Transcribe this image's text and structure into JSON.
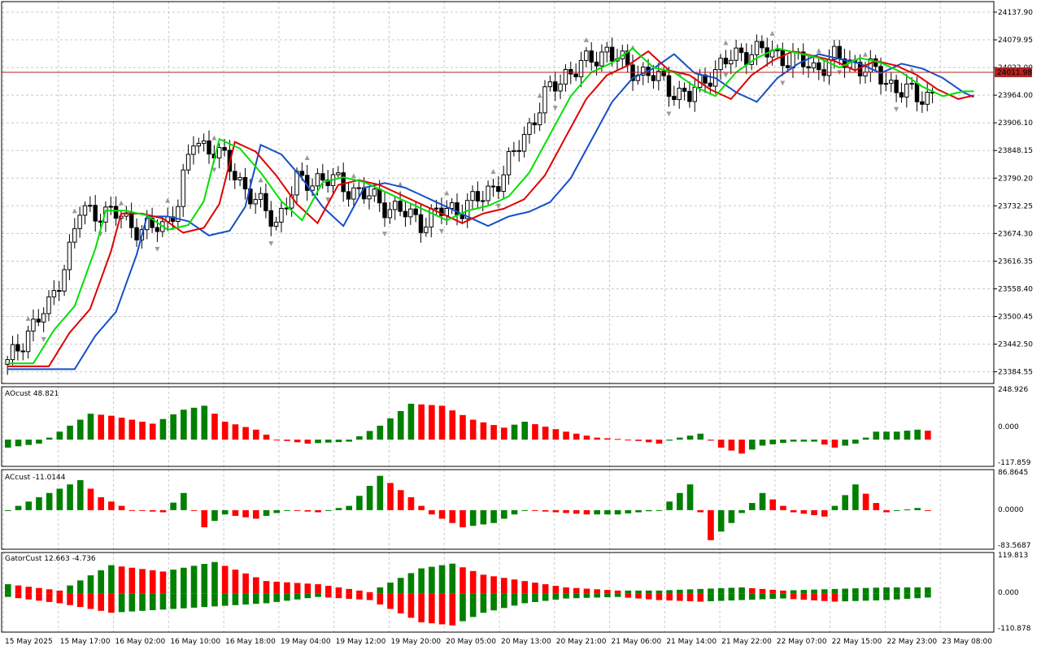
{
  "colors": {
    "up": "#008000",
    "down": "#ff0000",
    "alligator_jaw": "#1550c8",
    "alligator_teeth": "#e00000",
    "alligator_lips": "#00e000",
    "bid_line": "#b22222",
    "bid_tag": "#b22222",
    "grid": "#c8c8c8",
    "fractal": "#9a9a9a",
    "candle": "#000000"
  },
  "price_scale": {
    "labels": [
      "24137.90",
      "24079.95",
      "24022.00",
      "23964.00",
      "23906.10",
      "23848.15",
      "23790.20",
      "23732.25",
      "23674.30",
      "23616.35",
      "23558.40",
      "23500.45",
      "23442.50",
      "23384.55"
    ],
    "current_price": "24011.98"
  },
  "time_axis": {
    "labels": [
      "15 May 2025",
      "15 May 17:00",
      "16 May 02:00",
      "16 May 10:00",
      "16 May 18:00",
      "19 May 04:00",
      "19 May 12:00",
      "19 May 20:00",
      "20 May 05:00",
      "20 May 13:00",
      "20 May 21:00",
      "21 May 06:00",
      "21 May 14:00",
      "21 May 22:00",
      "22 May 07:00",
      "22 May 15:00",
      "22 May 23:00",
      "23 May 08:00"
    ]
  },
  "panels": {
    "ao": {
      "label": "AOcust 48.821",
      "scale_labels": [
        "248.926",
        "0.000",
        "-117.859"
      ]
    },
    "ac": {
      "label": "ACcust -11.0144",
      "scale_labels": [
        "86.8645",
        "0.0000",
        "-83.5687"
      ]
    },
    "gator": {
      "label": "GatorCust 12.663 -4.736",
      "scale_labels": [
        "119.813",
        "0.000",
        "-110.878"
      ]
    }
  },
  "chart_data": [
    {
      "type": "candlestick",
      "ylim": [
        23360,
        24160
      ],
      "bar_count": 180,
      "current_price": 24011.98,
      "close_path": [
        [
          0,
          23400
        ],
        [
          4,
          23470
        ],
        [
          8,
          23520
        ],
        [
          12,
          23640
        ],
        [
          14,
          23720
        ],
        [
          18,
          23720
        ],
        [
          22,
          23710
        ],
        [
          26,
          23680
        ],
        [
          30,
          23690
        ],
        [
          33,
          23740
        ],
        [
          36,
          23870
        ],
        [
          40,
          23850
        ],
        [
          44,
          23800
        ],
        [
          48,
          23740
        ],
        [
          52,
          23700
        ],
        [
          56,
          23780
        ],
        [
          60,
          23790
        ],
        [
          64,
          23780
        ],
        [
          68,
          23760
        ],
        [
          72,
          23740
        ],
        [
          76,
          23720
        ],
        [
          80,
          23700
        ],
        [
          84,
          23720
        ],
        [
          88,
          23730
        ],
        [
          92,
          23750
        ],
        [
          96,
          23800
        ],
        [
          100,
          23880
        ],
        [
          104,
          23960
        ],
        [
          108,
          24010
        ],
        [
          112,
          24030
        ],
        [
          116,
          24060
        ],
        [
          120,
          24020
        ],
        [
          124,
          24010
        ],
        [
          128,
          23980
        ],
        [
          132,
          23960
        ],
        [
          136,
          24010
        ],
        [
          140,
          24040
        ],
        [
          144,
          24060
        ],
        [
          148,
          24050
        ],
        [
          152,
          24040
        ],
        [
          156,
          24020
        ],
        [
          160,
          24040
        ],
        [
          164,
          24030
        ],
        [
          168,
          24010
        ],
        [
          172,
          23980
        ],
        [
          176,
          23960
        ],
        [
          180,
          23970
        ]
      ],
      "alligator": {
        "jaw_start": 23545,
        "jaw_end": 24012,
        "teeth_start": 23500,
        "teeth_end": 24020,
        "lips_start": 23490,
        "lips_end": 24025
      }
    },
    {
      "type": "bar",
      "name": "AOcust",
      "value": 48.821,
      "ylim": [
        -117.859,
        248.926
      ],
      "wave": [
        [
          0,
          -40
        ],
        [
          6,
          -20
        ],
        [
          10,
          40
        ],
        [
          16,
          130
        ],
        [
          20,
          120
        ],
        [
          28,
          80
        ],
        [
          34,
          150
        ],
        [
          38,
          170
        ],
        [
          42,
          90
        ],
        [
          48,
          50
        ],
        [
          52,
          0
        ],
        [
          58,
          -20
        ],
        [
          66,
          -10
        ],
        [
          72,
          70
        ],
        [
          78,
          180
        ],
        [
          84,
          170
        ],
        [
          90,
          100
        ],
        [
          96,
          60
        ],
        [
          100,
          90
        ],
        [
          108,
          40
        ],
        [
          114,
          10
        ],
        [
          120,
          0
        ],
        [
          126,
          -20
        ],
        [
          130,
          10
        ],
        [
          134,
          30
        ],
        [
          138,
          -40
        ],
        [
          142,
          -70
        ],
        [
          146,
          -30
        ],
        [
          152,
          -10
        ],
        [
          156,
          -10
        ],
        [
          160,
          -40
        ],
        [
          164,
          -20
        ],
        [
          168,
          40
        ],
        [
          172,
          40
        ],
        [
          176,
          50
        ],
        [
          180,
          40
        ]
      ]
    },
    {
      "type": "bar",
      "name": "ACcust",
      "value": -11.0144,
      "ylim": [
        -83.5687,
        86.8645
      ],
      "wave": [
        [
          0,
          0
        ],
        [
          8,
          40
        ],
        [
          14,
          70
        ],
        [
          18,
          30
        ],
        [
          24,
          0
        ],
        [
          30,
          -5
        ],
        [
          34,
          40
        ],
        [
          38,
          -40
        ],
        [
          42,
          -10
        ],
        [
          48,
          -20
        ],
        [
          54,
          0
        ],
        [
          60,
          -5
        ],
        [
          66,
          10
        ],
        [
          72,
          80
        ],
        [
          78,
          30
        ],
        [
          82,
          -10
        ],
        [
          88,
          -40
        ],
        [
          94,
          -30
        ],
        [
          100,
          0
        ],
        [
          106,
          -5
        ],
        [
          112,
          -10
        ],
        [
          118,
          -10
        ],
        [
          126,
          0
        ],
        [
          132,
          60
        ],
        [
          136,
          -70
        ],
        [
          140,
          -30
        ],
        [
          146,
          40
        ],
        [
          152,
          -5
        ],
        [
          158,
          -15
        ],
        [
          164,
          60
        ],
        [
          170,
          -5
        ],
        [
          176,
          5
        ],
        [
          180,
          -5
        ]
      ]
    },
    {
      "type": "bar",
      "name": "GatorCust",
      "values": [
        12.663,
        -4.736
      ],
      "ylim": [
        -110.878,
        119.813
      ],
      "upper_wave": [
        [
          0,
          30
        ],
        [
          10,
          10
        ],
        [
          20,
          90
        ],
        [
          30,
          70
        ],
        [
          40,
          100
        ],
        [
          50,
          40
        ],
        [
          60,
          30
        ],
        [
          70,
          5
        ],
        [
          80,
          80
        ],
        [
          86,
          95
        ],
        [
          92,
          60
        ],
        [
          100,
          40
        ],
        [
          108,
          20
        ],
        [
          118,
          10
        ],
        [
          126,
          10
        ],
        [
          134,
          15
        ],
        [
          142,
          20
        ],
        [
          150,
          10
        ],
        [
          160,
          15
        ],
        [
          170,
          20
        ],
        [
          180,
          20
        ]
      ],
      "lower_wave": [
        [
          0,
          -10
        ],
        [
          10,
          -30
        ],
        [
          20,
          -60
        ],
        [
          30,
          -50
        ],
        [
          40,
          -40
        ],
        [
          50,
          -30
        ],
        [
          60,
          -10
        ],
        [
          70,
          -20
        ],
        [
          80,
          -90
        ],
        [
          86,
          -100
        ],
        [
          92,
          -60
        ],
        [
          100,
          -30
        ],
        [
          108,
          -15
        ],
        [
          118,
          -10
        ],
        [
          126,
          -20
        ],
        [
          134,
          -25
        ],
        [
          142,
          -20
        ],
        [
          150,
          -15
        ],
        [
          160,
          -25
        ],
        [
          170,
          -20
        ],
        [
          180,
          -10
        ]
      ]
    }
  ]
}
